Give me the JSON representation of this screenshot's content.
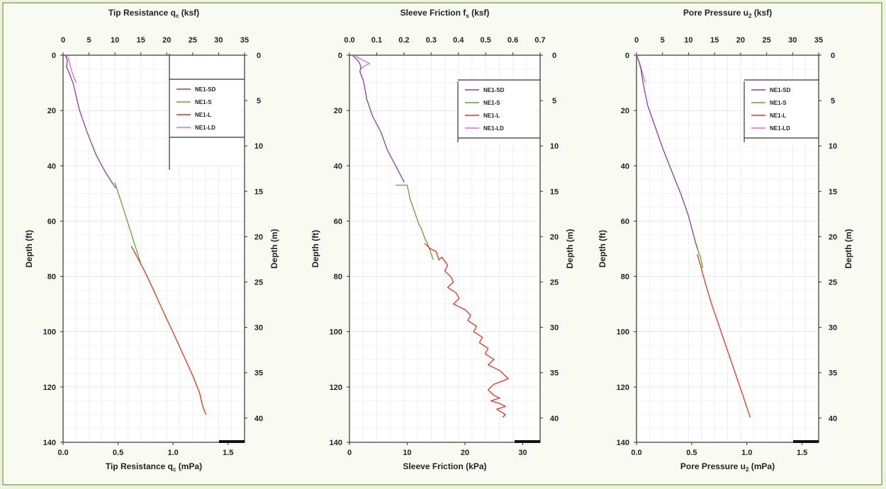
{
  "colors": {
    "NE1-SD": "#8a3fa0",
    "NE1-S": "#5ba832",
    "NE1-L": "#e8331f",
    "NE1-LD": "#d96fd0",
    "axis": "#333333",
    "grid": "#d6d6d6"
  },
  "chart_data": [
    {
      "type": "line",
      "title_top": "Tip Resistance q",
      "title_top_sub": "c",
      "title_top_unit": " (ksf)",
      "xlabel": "Tip Resistance q",
      "xlabel_sub": "c",
      "xlabel_unit": " (mPa)",
      "ylabel_left": "Depth (ft)",
      "ylabel_right": "Depth (m)",
      "xlim": [
        0,
        1.65
      ],
      "xticks": [
        "0.0",
        "0.5",
        "1.0",
        "1.5"
      ],
      "xtick_values": [
        0,
        0.5,
        1.0,
        1.5
      ],
      "top_xlim": [
        0,
        35
      ],
      "top_xticks": [
        "0",
        "5",
        "10",
        "15",
        "20",
        "25",
        "30",
        "35"
      ],
      "top_xtick_values": [
        0,
        5,
        10,
        15,
        20,
        25,
        30,
        35
      ],
      "ylim": [
        0,
        140
      ],
      "yticks": [
        "0",
        "20",
        "40",
        "60",
        "80",
        "100",
        "120",
        "140"
      ],
      "ytick_values": [
        0,
        20,
        40,
        60,
        80,
        100,
        120,
        140
      ],
      "right_ylim": [
        0,
        42.67
      ],
      "right_yticks": [
        "0",
        "5",
        "10",
        "15",
        "20",
        "25",
        "30",
        "35",
        "40"
      ],
      "right_ytick_values": [
        0,
        5,
        10,
        15,
        20,
        25,
        30,
        35,
        40
      ],
      "legend": [
        "NE1-SD",
        "NE1-S",
        "NE1-L",
        "NE1-LD"
      ],
      "legend_position": "top-right",
      "series": [
        {
          "name": "NE1-SD",
          "x": [
            0.02,
            0.04,
            0.03,
            0.05,
            0.09,
            0.15,
            0.22,
            0.3,
            0.38,
            0.46,
            0.48
          ],
          "y": [
            0,
            2,
            4,
            6,
            10,
            20,
            28,
            36,
            42,
            47,
            48
          ]
        },
        {
          "name": "NE1-S",
          "x": [
            0.47,
            0.52,
            0.56,
            0.6,
            0.64,
            0.68,
            0.71
          ],
          "y": [
            46,
            52,
            57,
            62,
            67,
            72,
            76
          ]
        },
        {
          "name": "NE1-L",
          "x": [
            0.62,
            0.66,
            0.7,
            0.74,
            0.8,
            0.88,
            0.95,
            1.02,
            1.1,
            1.18,
            1.24,
            1.27,
            1.3
          ],
          "y": [
            69,
            72,
            75,
            78,
            83,
            90,
            96,
            102,
            109,
            116,
            122,
            127,
            130
          ]
        },
        {
          "name": "NE1-LD",
          "x": [
            0.02,
            0.05,
            0.06,
            0.08,
            0.12
          ],
          "y": [
            0,
            1,
            3,
            6,
            10
          ]
        }
      ]
    },
    {
      "type": "line",
      "title_top": "Sleeve Friction f",
      "title_top_sub": "s",
      "title_top_unit": " (ksf)",
      "xlabel": "Sleeve Friction (kPa)",
      "xlabel_sub": "",
      "xlabel_unit": "",
      "ylabel_left": "Depth (ft)",
      "ylabel_right": "Depth (m)",
      "xlim": [
        0,
        33
      ],
      "xticks": [
        "0",
        "10",
        "20",
        "30"
      ],
      "xtick_values": [
        0,
        10,
        20,
        30
      ],
      "top_xlim": [
        0,
        0.7
      ],
      "top_xticks": [
        "0.0",
        "0.1",
        "0.2",
        "0.3",
        "0.4",
        "0.5",
        "0.6",
        "0.7"
      ],
      "top_xtick_values": [
        0,
        0.1,
        0.2,
        0.3,
        0.4,
        0.5,
        0.6,
        0.7
      ],
      "ylim": [
        0,
        140
      ],
      "yticks": [
        "0",
        "20",
        "40",
        "60",
        "80",
        "100",
        "120",
        "140"
      ],
      "ytick_values": [
        0,
        20,
        40,
        60,
        80,
        100,
        120,
        140
      ],
      "right_ylim": [
        0,
        42.67
      ],
      "right_yticks": [
        "0",
        "5",
        "10",
        "15",
        "20",
        "25",
        "30",
        "35",
        "40"
      ],
      "right_ytick_values": [
        0,
        5,
        10,
        15,
        20,
        25,
        30,
        35,
        40
      ],
      "legend": [
        "NE1-SD",
        "NE1-S",
        "NE1-L",
        "NE1-LD"
      ],
      "legend_position": "top-right",
      "series": [
        {
          "name": "NE1-SD",
          "x": [
            0.5,
            1.5,
            2.0,
            1.8,
            2.2,
            2.5,
            3.0,
            4.0,
            5.5,
            6.5,
            7.5,
            8.5,
            9.5
          ],
          "y": [
            0,
            2,
            4,
            6,
            8,
            10,
            16,
            22,
            28,
            34,
            38,
            42,
            46
          ]
        },
        {
          "name": "NE1-S",
          "x": [
            8.0,
            10.0,
            10.5,
            11.0,
            11.5,
            12.0,
            12.5,
            13.0,
            13.5,
            14.0,
            14.5
          ],
          "y": [
            47,
            47,
            52,
            55,
            58,
            61,
            63,
            66,
            68,
            71,
            74
          ]
        },
        {
          "name": "NE1-L",
          "x": [
            13,
            14,
            15,
            15.5,
            16,
            17,
            16.5,
            17.5,
            18,
            17,
            18.5,
            19,
            18,
            20,
            21,
            20.5,
            22,
            21.5,
            23,
            22.5,
            24,
            23.5,
            25,
            24,
            26,
            27.5,
            25,
            24,
            25,
            26,
            24.5,
            26,
            27,
            25.5,
            27,
            26.5
          ],
          "y": [
            68,
            70,
            71,
            74,
            73,
            76,
            78,
            80,
            82,
            84,
            86,
            88,
            90,
            92,
            94,
            96,
            98,
            100,
            102,
            104,
            106,
            108,
            110,
            112,
            114,
            117,
            119,
            121,
            123,
            124,
            125,
            126,
            127,
            128,
            130,
            131
          ]
        },
        {
          "name": "NE1-LD",
          "x": [
            0.8,
            2.5,
            3.5,
            2.5,
            2.0
          ],
          "y": [
            0,
            2,
            3,
            4,
            5
          ]
        }
      ]
    },
    {
      "type": "line",
      "title_top": "Pore Pressure u",
      "title_top_sub": "2",
      "title_top_unit": " (ksf)",
      "xlabel": "Pore Pressure u",
      "xlabel_sub": "2",
      "xlabel_unit": " (mPa)",
      "ylabel_left": "Depth (ft)",
      "ylabel_right": "Depth (m)",
      "xlim": [
        0,
        1.65
      ],
      "xticks": [
        "0.0",
        "0.5",
        "1.0",
        "1.5"
      ],
      "xtick_values": [
        0,
        0.5,
        1.0,
        1.5
      ],
      "top_xlim": [
        0,
        35
      ],
      "top_xticks": [
        "0",
        "5",
        "10",
        "15",
        "20",
        "25",
        "30",
        "35"
      ],
      "top_xtick_values": [
        0,
        5,
        10,
        15,
        20,
        25,
        30,
        35
      ],
      "ylim": [
        0,
        140
      ],
      "yticks": [
        "0",
        "20",
        "40",
        "60",
        "80",
        "100",
        "120",
        "140"
      ],
      "ytick_values": [
        0,
        20,
        40,
        60,
        80,
        100,
        120,
        140
      ],
      "right_ylim": [
        0,
        42.67
      ],
      "right_yticks": [
        "0",
        "5",
        "10",
        "15",
        "20",
        "25",
        "30",
        "35",
        "40"
      ],
      "right_ytick_values": [
        0,
        5,
        10,
        15,
        20,
        25,
        30,
        35,
        40
      ],
      "legend": [
        "NE1-SD",
        "NE1-S",
        "NE1-L",
        "NE1-LD"
      ],
      "legend_position": "top-right",
      "series": [
        {
          "name": "NE1-SD",
          "x": [
            0.0,
            0.02,
            0.04,
            0.06,
            0.1,
            0.17,
            0.24,
            0.32,
            0.4,
            0.47,
            0.51,
            0.55
          ],
          "y": [
            0,
            2,
            5,
            10,
            18,
            26,
            34,
            42,
            50,
            58,
            64,
            70
          ]
        },
        {
          "name": "NE1-S",
          "x": [
            0.54,
            0.56,
            0.58,
            0.59,
            0.6
          ],
          "y": [
            68,
            71,
            73,
            75,
            77
          ]
        },
        {
          "name": "NE1-L",
          "x": [
            0.55,
            0.58,
            0.62,
            0.68,
            0.74,
            0.8,
            0.86,
            0.92,
            0.98,
            1.03
          ],
          "y": [
            72,
            76,
            82,
            90,
            97,
            104,
            111,
            118,
            125,
            131
          ]
        },
        {
          "name": "NE1-LD",
          "x": [
            0.0,
            0.03,
            0.05,
            0.08
          ],
          "y": [
            0,
            3,
            6,
            10
          ]
        }
      ]
    }
  ]
}
